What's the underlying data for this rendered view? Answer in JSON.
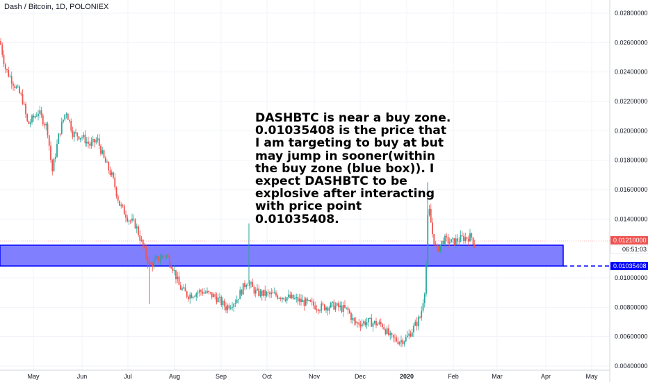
{
  "header": {
    "symbol_title": "Dash / Bitcoin, 1D, POLONIEX"
  },
  "annotation": {
    "text": "DASHBTC is near a buy zone.\n0.01035408 is the price that\nI am targeting to buy at but\nmay jump in sooner(within\nthe buy zone (blue box)). I\nexpect DASHBTC to be\nexplosive after interacting\nwith price point\n0.01035408."
  },
  "colors": {
    "up": "#26a69a",
    "down": "#ef5350",
    "zone_fill": "#8080ff",
    "zone_border": "#0000ff",
    "target_line": "#0000ff",
    "price_tag": "#ef5350"
  },
  "chart_data": {
    "type": "candlestick",
    "title": "Dash / Bitcoin, 1D, POLONIEX",
    "y_ticks": [
      "0.02800000",
      "0.02600000",
      "0.02400000",
      "0.02200000",
      "0.02000000",
      "0.01800000",
      "0.01600000",
      "0.01400000",
      "0.01000000",
      "0.00800000",
      "0.00600000",
      "0.00400000"
    ],
    "x_ticks": [
      {
        "label": "May",
        "bold": false
      },
      {
        "label": "Jun",
        "bold": false
      },
      {
        "label": "Jul",
        "bold": false
      },
      {
        "label": "Aug",
        "bold": false
      },
      {
        "label": "Sep",
        "bold": false
      },
      {
        "label": "Oct",
        "bold": false
      },
      {
        "label": "Nov",
        "bold": false
      },
      {
        "label": "Dec",
        "bold": false
      },
      {
        "label": "2020",
        "bold": true
      },
      {
        "label": "Feb",
        "bold": false
      },
      {
        "label": "Mar",
        "bold": false
      },
      {
        "label": "Apr",
        "bold": false
      },
      {
        "label": "May",
        "bold": false
      }
    ],
    "last_price": "0.01210000",
    "countdown": "06:51:03",
    "target_price": "0.01035408",
    "buy_zone": {
      "low": 0.01035408,
      "high": 0.01175
    },
    "price_path": [
      [
        0,
        0.0261
      ],
      [
        8,
        0.0242
      ],
      [
        20,
        0.0232
      ],
      [
        32,
        0.0222
      ],
      [
        40,
        0.0204
      ],
      [
        55,
        0.0213
      ],
      [
        68,
        0.0202
      ],
      [
        75,
        0.0172
      ],
      [
        85,
        0.0198
      ],
      [
        95,
        0.0214
      ],
      [
        105,
        0.0198
      ],
      [
        118,
        0.0196
      ],
      [
        130,
        0.019
      ],
      [
        140,
        0.0194
      ],
      [
        150,
        0.018
      ],
      [
        162,
        0.0168
      ],
      [
        172,
        0.015
      ],
      [
        185,
        0.014
      ],
      [
        195,
        0.0136
      ],
      [
        205,
        0.0122
      ],
      [
        215,
        0.0108
      ],
      [
        225,
        0.0112
      ],
      [
        238,
        0.0116
      ],
      [
        248,
        0.0108
      ],
      [
        258,
        0.0094
      ],
      [
        270,
        0.0088
      ],
      [
        290,
        0.0091
      ],
      [
        310,
        0.0087
      ],
      [
        325,
        0.008
      ],
      [
        340,
        0.0085
      ],
      [
        355,
        0.0098
      ],
      [
        368,
        0.009
      ],
      [
        380,
        0.0089
      ],
      [
        400,
        0.0088
      ],
      [
        420,
        0.0086
      ],
      [
        440,
        0.0083
      ],
      [
        460,
        0.008
      ],
      [
        480,
        0.0081
      ],
      [
        500,
        0.0078
      ],
      [
        510,
        0.0069
      ],
      [
        530,
        0.007
      ],
      [
        550,
        0.0068
      ],
      [
        562,
        0.0059
      ],
      [
        575,
        0.0057
      ],
      [
        585,
        0.0059
      ],
      [
        595,
        0.0066
      ],
      [
        605,
        0.0074
      ],
      [
        612,
        0.0096
      ],
      [
        616,
        0.015
      ],
      [
        622,
        0.013
      ],
      [
        628,
        0.0118
      ],
      [
        638,
        0.0126
      ],
      [
        650,
        0.0124
      ],
      [
        665,
        0.0127
      ],
      [
        678,
        0.0128
      ],
      [
        684,
        0.0121
      ]
    ]
  }
}
